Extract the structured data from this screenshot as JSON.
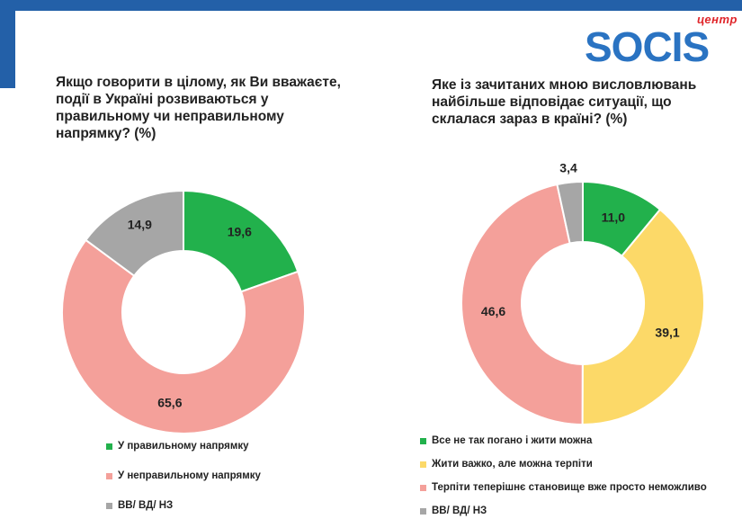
{
  "logo": {
    "small": "центр",
    "main": "SOCIS"
  },
  "charts": [
    {
      "title": "Якщо говорити в цілому, як Ви вважаєте, події в Україні розвиваються у правильному чи неправильному напрямку? (%)"
    },
    {
      "title": "Яке із зачитаних мною висловлювань найбільше відповідає ситуації, що склалася зараз в країні? (%)"
    }
  ],
  "chart_data": [
    {
      "type": "pie",
      "title": "Якщо говорити в цілому, як Ви вважаєте, події в Україні розвиваються у правильному чи неправильному напрямку? (%)",
      "categories": [
        "У правильному  напрямку",
        "У неправильному  напрямку",
        "ВВ/ ВД/ НЗ"
      ],
      "values": [
        19.6,
        65.6,
        14.9
      ],
      "labels": [
        "19,6",
        "65,6",
        "14,9"
      ],
      "colors": [
        "#22b14c",
        "#f4a09a",
        "#a6a6a6"
      ],
      "donut": true,
      "legend": "bottom"
    },
    {
      "type": "pie",
      "title": "Яке із зачитаних мною висловлювань найбільше відповідає ситуації, що склалася зараз в країні? (%)",
      "categories": [
        "Все не так погано і жити можна",
        "Жити важко, але можна терпіти",
        "Терпіти теперішнє становище вже просто неможливо",
        "ВВ/ ВД/ НЗ"
      ],
      "values": [
        11.0,
        39.1,
        46.6,
        3.4
      ],
      "labels": [
        "11,0",
        "39,1",
        "46,6",
        "3,4"
      ],
      "colors": [
        "#22b14c",
        "#fcd968",
        "#f4a09a",
        "#a6a6a6"
      ],
      "donut": true,
      "legend": "bottom"
    }
  ]
}
